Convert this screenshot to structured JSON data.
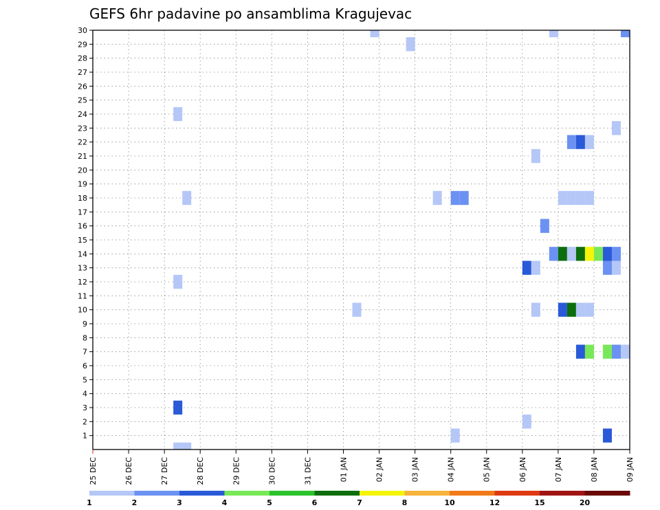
{
  "chart_data": {
    "type": "heatmap",
    "title": "GEFS 6hr padavine po ansamblima Kragujevac",
    "xlabel": "",
    "ylabel": "",
    "y_ticks": [
      "1",
      "2",
      "3",
      "4",
      "5",
      "6",
      "7",
      "8",
      "9",
      "10",
      "11",
      "12",
      "13",
      "14",
      "15",
      "16",
      "17",
      "18",
      "19",
      "20",
      "21",
      "22",
      "23",
      "24",
      "25",
      "26",
      "27",
      "28",
      "29",
      "30"
    ],
    "y_range": [
      0,
      30
    ],
    "x_ticks": [
      "25 DEC",
      "26 DEC",
      "27 DEC",
      "28 DEC",
      "29 DEC",
      "30 DEC",
      "31 DEC",
      "01 JAN",
      "02 JAN",
      "03 JAN",
      "04 JAN",
      "05 JAN",
      "06 JAN",
      "07 JAN",
      "08 JAN",
      "09 JAN"
    ],
    "x_range_days": [
      0,
      15
    ],
    "time_step_hours": 6,
    "grid": true,
    "legend_position": "bottom",
    "legend_levels": [
      "1",
      "2",
      "3",
      "4",
      "5",
      "6",
      "7",
      "8",
      "10",
      "12",
      "15",
      "20"
    ],
    "legend_colors": [
      "#b4c7f7",
      "#6b91f2",
      "#2a5ad8",
      "#78e858",
      "#2cc22c",
      "#0c6e0c",
      "#f4f40a",
      "#f7b43c",
      "#f27a1a",
      "#de3a12",
      "#a01414",
      "#6a0808"
    ],
    "cells": [
      {
        "member": 30,
        "date": "01 JAN 18Z",
        "color": "#b4c7f7"
      },
      {
        "member": 30,
        "date": "06 JAN 18Z",
        "color": "#b4c7f7"
      },
      {
        "member": 30,
        "date": "08 JAN 18Z",
        "color": "#6b91f2"
      },
      {
        "member": 29,
        "date": "02 JAN 18Z",
        "color": "#b4c7f7"
      },
      {
        "member": 24,
        "date": "27 DEC 06Z",
        "color": "#b4c7f7"
      },
      {
        "member": 23,
        "date": "08 JAN 12Z",
        "color": "#b4c7f7"
      },
      {
        "member": 22,
        "date": "07 JAN 06Z",
        "color": "#6b91f2"
      },
      {
        "member": 22,
        "date": "07 JAN 12Z",
        "color": "#2a5ad8"
      },
      {
        "member": 22,
        "date": "07 JAN 18Z",
        "color": "#b4c7f7"
      },
      {
        "member": 21,
        "date": "06 JAN 06Z",
        "color": "#b4c7f7"
      },
      {
        "member": 18,
        "date": "27 DEC 12Z",
        "color": "#b4c7f7"
      },
      {
        "member": 18,
        "date": "03 JAN 12Z",
        "color": "#b4c7f7"
      },
      {
        "member": 18,
        "date": "04 JAN 00Z",
        "color": "#6b91f2"
      },
      {
        "member": 18,
        "date": "04 JAN 06Z",
        "color": "#6b91f2"
      },
      {
        "member": 18,
        "date": "07 JAN 00Z",
        "color": "#b4c7f7"
      },
      {
        "member": 18,
        "date": "07 JAN 06Z",
        "color": "#b4c7f7"
      },
      {
        "member": 18,
        "date": "07 JAN 12Z",
        "color": "#b4c7f7"
      },
      {
        "member": 18,
        "date": "07 JAN 18Z",
        "color": "#b4c7f7"
      },
      {
        "member": 16,
        "date": "06 JAN 12Z",
        "color": "#6b91f2"
      },
      {
        "member": 14,
        "date": "06 JAN 18Z",
        "color": "#6b91f2"
      },
      {
        "member": 14,
        "date": "07 JAN 00Z",
        "color": "#0c6e0c"
      },
      {
        "member": 14,
        "date": "07 JAN 06Z",
        "color": "#b4c7f7"
      },
      {
        "member": 14,
        "date": "07 JAN 12Z",
        "color": "#0c6e0c"
      },
      {
        "member": 14,
        "date": "07 JAN 18Z",
        "color": "#f4f40a"
      },
      {
        "member": 14,
        "date": "08 JAN 00Z",
        "color": "#78e858"
      },
      {
        "member": 14,
        "date": "08 JAN 06Z",
        "color": "#2a5ad8"
      },
      {
        "member": 14,
        "date": "08 JAN 12Z",
        "color": "#6b91f2"
      },
      {
        "member": 13,
        "date": "08 JAN 06Z",
        "color": "#6b91f2"
      },
      {
        "member": 13,
        "date": "08 JAN 12Z",
        "color": "#b4c7f7"
      },
      {
        "member": 13,
        "date": "06 JAN 00Z",
        "color": "#2a5ad8"
      },
      {
        "member": 13,
        "date": "06 JAN 06Z",
        "color": "#b4c7f7"
      },
      {
        "member": 12,
        "date": "27 DEC 06Z",
        "color": "#b4c7f7"
      },
      {
        "member": 10,
        "date": "01 JAN 06Z",
        "color": "#b4c7f7"
      },
      {
        "member": 10,
        "date": "06 JAN 06Z",
        "color": "#b4c7f7"
      },
      {
        "member": 10,
        "date": "07 JAN 00Z",
        "color": "#2a5ad8"
      },
      {
        "member": 10,
        "date": "07 JAN 06Z",
        "color": "#0c6e0c"
      },
      {
        "member": 10,
        "date": "07 JAN 12Z",
        "color": "#b4c7f7"
      },
      {
        "member": 10,
        "date": "07 JAN 18Z",
        "color": "#b4c7f7"
      },
      {
        "member": 7,
        "date": "07 JAN 12Z",
        "color": "#2a5ad8"
      },
      {
        "member": 7,
        "date": "07 JAN 18Z",
        "color": "#78e858"
      },
      {
        "member": 7,
        "date": "08 JAN 06Z",
        "color": "#78e858"
      },
      {
        "member": 7,
        "date": "08 JAN 12Z",
        "color": "#6b91f2"
      },
      {
        "member": 7,
        "date": "08 JAN 18Z",
        "color": "#b4c7f7"
      },
      {
        "member": 3,
        "date": "27 DEC 06Z",
        "color": "#2a5ad8"
      },
      {
        "member": 2,
        "date": "06 JAN 00Z",
        "color": "#b4c7f7"
      },
      {
        "member": 1,
        "date": "04 JAN 00Z",
        "color": "#b4c7f7"
      },
      {
        "member": 1,
        "date": "08 JAN 06Z",
        "color": "#2a5ad8"
      },
      {
        "member": 0,
        "date": "27 DEC 06Z",
        "color": "#b4c7f7"
      },
      {
        "member": 0,
        "date": "27 DEC 12Z",
        "color": "#b4c7f7"
      }
    ]
  }
}
